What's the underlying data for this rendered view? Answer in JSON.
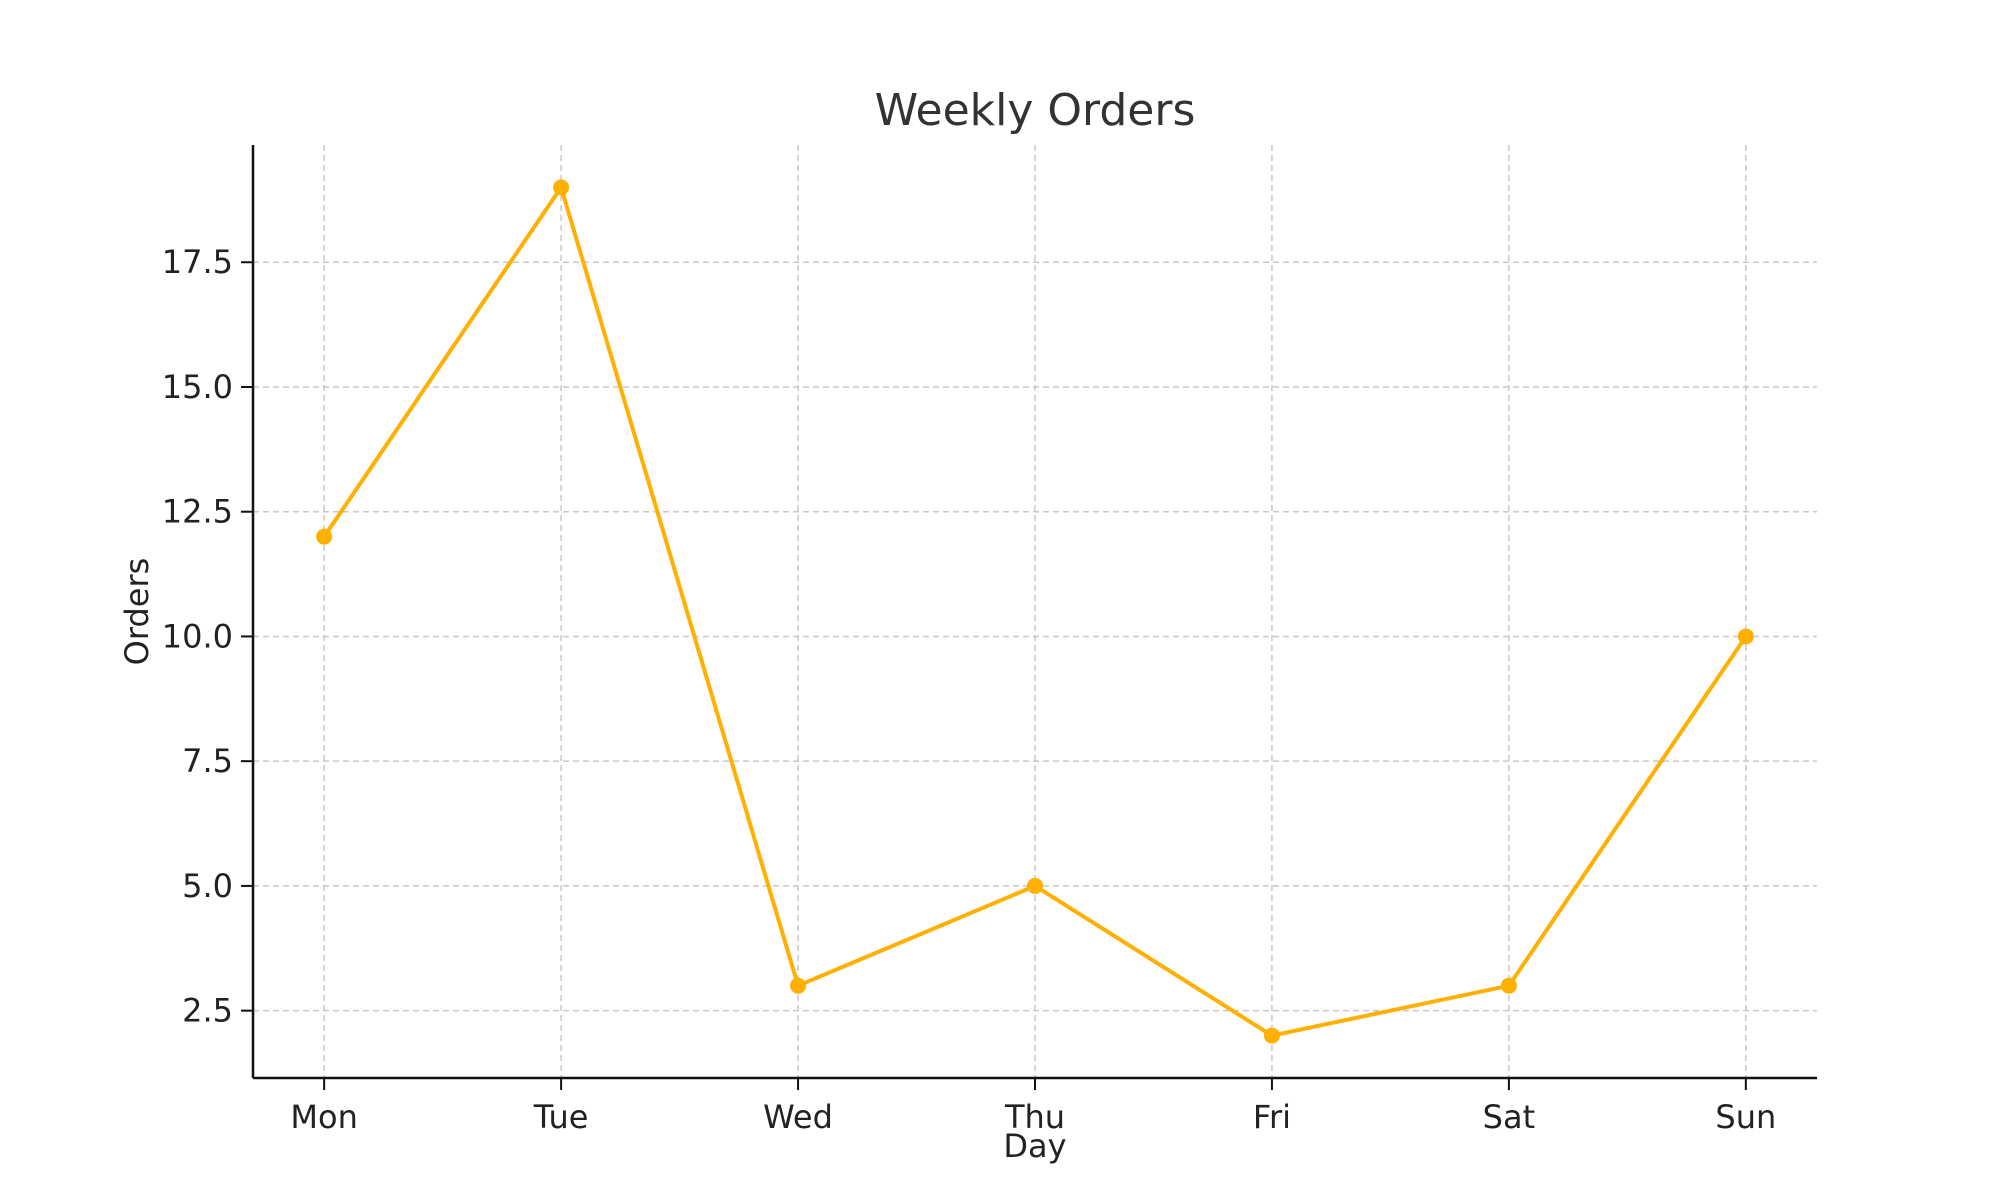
{
  "chart_data": {
    "type": "line",
    "title": "Weekly Orders",
    "xlabel": "Day",
    "ylabel": "Orders",
    "categories": [
      "Mon",
      "Tue",
      "Wed",
      "Thu",
      "Fri",
      "Sat",
      "Sun"
    ],
    "series": [
      {
        "values": [
          12,
          19,
          3,
          5,
          2,
          3,
          10
        ],
        "color": "#FFB000"
      }
    ],
    "ylim": [
      1.15,
      19.85
    ],
    "yticks": [
      "2.5",
      "5.0",
      "7.5",
      "10.0",
      "12.5",
      "15.0",
      "17.5"
    ],
    "grid": true,
    "legend": "none"
  }
}
